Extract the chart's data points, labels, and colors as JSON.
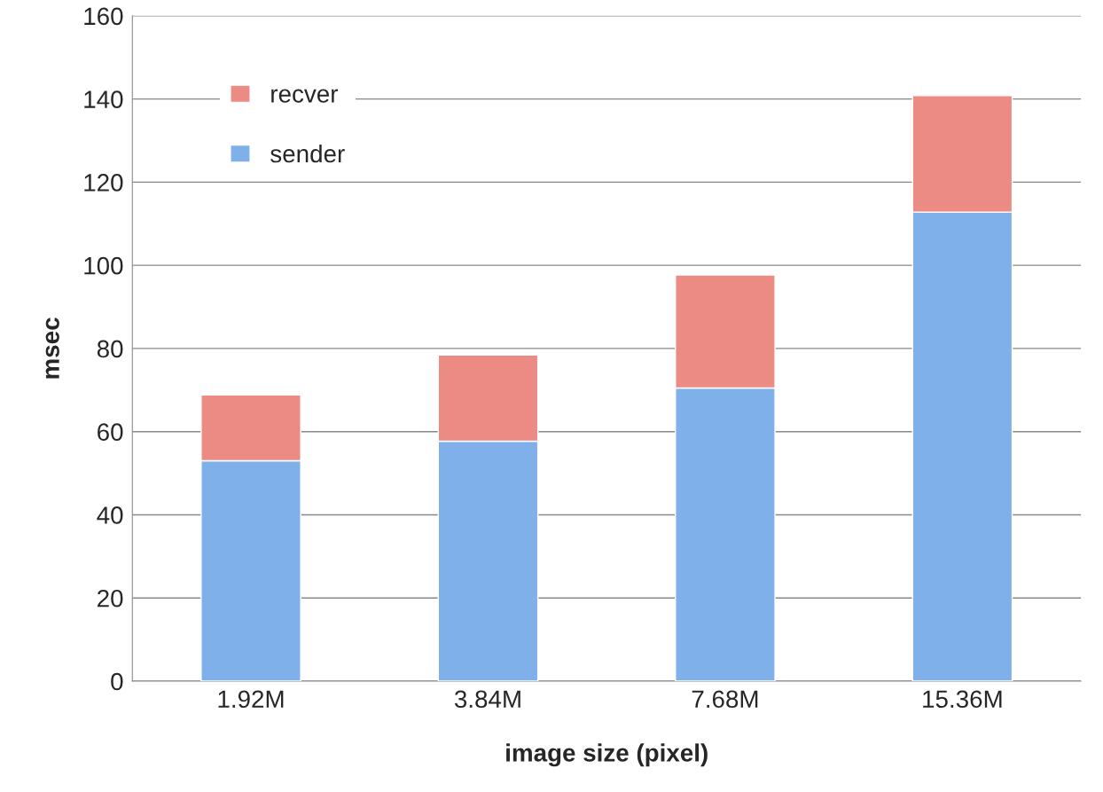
{
  "chart_data": {
    "type": "bar",
    "stacked": true,
    "xlabel": "image size (pixel)",
    "ylabel": "msec",
    "categories": [
      "1.92M",
      "3.84M",
      "7.68M",
      "15.36M"
    ],
    "series": [
      {
        "name": "sender",
        "color": "#7fb0ea",
        "values": [
          53,
          57.7,
          70.5,
          112.8
        ]
      },
      {
        "name": "recver",
        "color": "#ec8a84",
        "values": [
          15.8,
          20.7,
          27.2,
          28
        ]
      }
    ],
    "ylim": [
      0,
      160
    ],
    "yticks": [
      0,
      20,
      40,
      60,
      80,
      100,
      120,
      140,
      160
    ],
    "grid": "y",
    "legend": "top left"
  }
}
